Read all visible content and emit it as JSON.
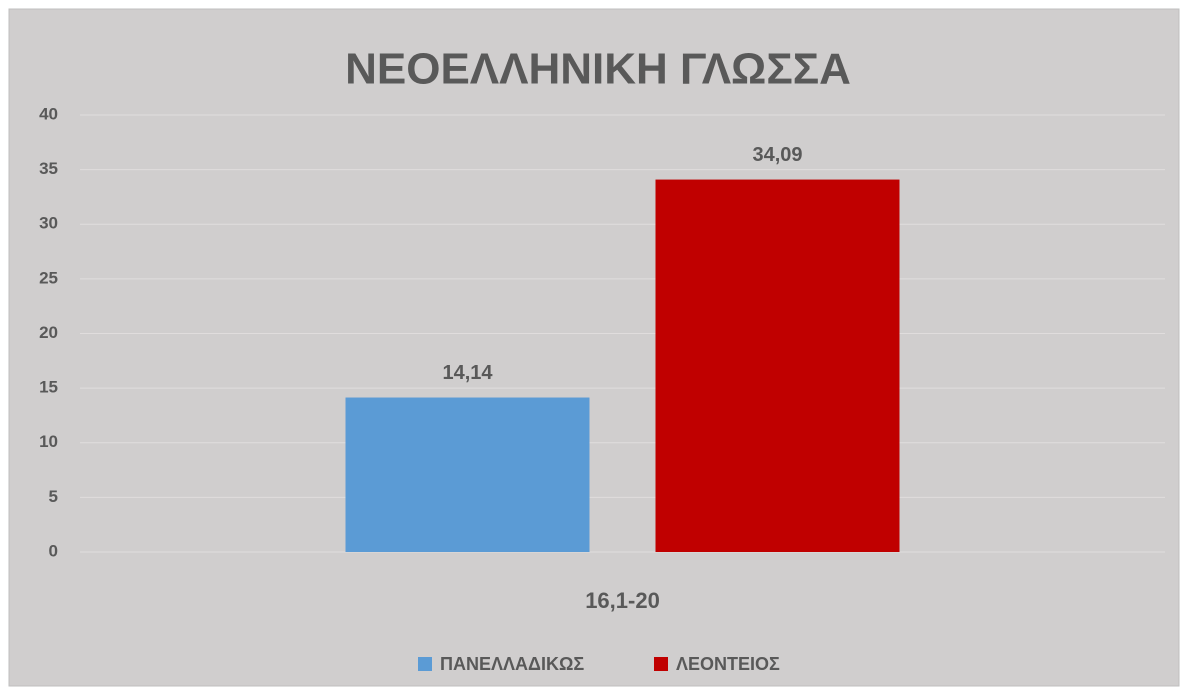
{
  "chart_data": {
    "type": "bar",
    "title": "ΝΕΟΕΛΛΗΝΙΚΗ ΓΛΩΣΣΑ",
    "categories": [
      "16,1-20"
    ],
    "series": [
      {
        "name": "ΠΑΝΕΛΛΑΔΙΚΩΣ",
        "color": "#5b9bd5",
        "values": [
          14.14
        ],
        "value_labels": [
          "14,14"
        ]
      },
      {
        "name": "ΛΕΟΝΤΕΙΟΣ",
        "color": "#c00000",
        "values": [
          34.09
        ],
        "value_labels": [
          "34,09"
        ]
      }
    ],
    "ylim": [
      0,
      40
    ],
    "yticks": [
      0,
      5,
      10,
      15,
      20,
      25,
      30,
      35,
      40
    ],
    "grid": true,
    "legend": "bottom"
  }
}
